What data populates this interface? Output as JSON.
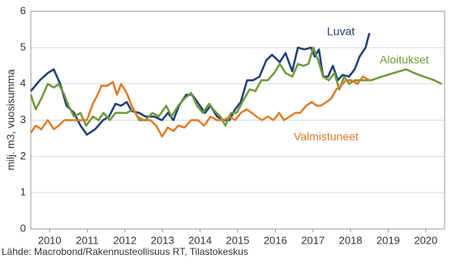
{
  "chart_data": {
    "type": "line",
    "y_label": "milj. m3, vuosisumma",
    "source": "Lähde: Macrobond/Rakennusteollisuus RT, Tilastokeskus",
    "xlim": [
      2010,
      2021
    ],
    "xticks": [
      {
        "value": 2010.5,
        "label": "2010"
      },
      {
        "value": 2011.5,
        "label": "2011"
      },
      {
        "value": 2012.5,
        "label": "2012"
      },
      {
        "value": 2013.5,
        "label": "2013"
      },
      {
        "value": 2014.5,
        "label": "2014"
      },
      {
        "value": 2015.5,
        "label": "2015"
      },
      {
        "value": 2016.5,
        "label": "2016"
      },
      {
        "value": 2017.5,
        "label": "2017"
      },
      {
        "value": 2018.5,
        "label": "2018"
      },
      {
        "value": 2019.5,
        "label": "2019"
      },
      {
        "value": 2020.5,
        "label": "2020"
      }
    ],
    "ylim": [
      0,
      6
    ],
    "yticks": [
      0,
      1,
      2,
      3,
      4,
      5,
      6
    ],
    "grid": true,
    "series": [
      {
        "name": "Luvat",
        "color": "#1f3f7a",
        "x": [
          2010.0,
          2010.24,
          2010.45,
          2010.61,
          2010.78,
          2010.95,
          2011.15,
          2011.32,
          2011.49,
          2011.71,
          2011.92,
          2012.08,
          2012.25,
          2012.4,
          2012.55,
          2012.68,
          2012.88,
          2013.05,
          2013.27,
          2013.49,
          2013.64,
          2013.79,
          2013.94,
          2014.13,
          2014.29,
          2014.46,
          2014.63,
          2014.78,
          2014.95,
          2015.13,
          2015.28,
          2015.43,
          2015.58,
          2015.75,
          2015.91,
          2016.08,
          2016.26,
          2016.41,
          2016.52,
          2016.62,
          2016.77,
          2016.95,
          2017.1,
          2017.27,
          2017.45,
          2017.55,
          2017.66,
          2017.77,
          2017.9,
          2018.03,
          2018.16,
          2018.29,
          2018.46,
          2018.61,
          2018.74,
          2018.9,
          2019.0
        ],
        "values": [
          3.8,
          4.1,
          4.3,
          4.4,
          4.0,
          3.4,
          3.2,
          2.85,
          2.6,
          2.75,
          3.0,
          3.1,
          3.45,
          3.4,
          3.5,
          3.25,
          3.2,
          3.1,
          3.1,
          3.0,
          3.2,
          3.0,
          3.4,
          3.7,
          3.7,
          3.45,
          3.2,
          3.4,
          3.1,
          3.0,
          3.0,
          3.3,
          3.5,
          4.1,
          4.1,
          4.2,
          4.65,
          4.8,
          4.7,
          4.6,
          4.85,
          4.35,
          5.0,
          4.95,
          5.0,
          4.75,
          4.95,
          4.2,
          4.2,
          4.5,
          4.1,
          4.25,
          4.2,
          4.4,
          4.75,
          5.0,
          5.4
        ]
      },
      {
        "name": "Aloitukset",
        "color": "#6e9a3a",
        "x": [
          2010.0,
          2010.13,
          2010.28,
          2010.45,
          2010.61,
          2010.74,
          2010.89,
          2011.0,
          2011.15,
          2011.32,
          2011.47,
          2011.65,
          2011.8,
          2011.93,
          2012.1,
          2012.25,
          2012.4,
          2012.55,
          2012.73,
          2012.88,
          2013.05,
          2013.23,
          2013.4,
          2013.6,
          2013.74,
          2013.92,
          2014.09,
          2014.26,
          2014.42,
          2014.57,
          2014.74,
          2014.89,
          2015.04,
          2015.17,
          2015.32,
          2015.47,
          2015.65,
          2015.82,
          2015.97,
          2016.13,
          2016.3,
          2016.47,
          2016.62,
          2016.77,
          2016.95,
          2017.1,
          2017.25,
          2017.38,
          2017.51,
          2017.64,
          2017.77,
          2017.92,
          2018.07,
          2018.2,
          2018.33,
          2018.46,
          2018.61,
          2018.74,
          2018.9,
          2019.05,
          2019.33,
          2019.65,
          2019.98,
          2020.19,
          2020.45,
          2020.73,
          2020.92
        ],
        "values": [
          3.7,
          3.3,
          3.6,
          4.0,
          3.9,
          4.0,
          3.7,
          3.4,
          3.1,
          3.2,
          2.85,
          3.1,
          3.0,
          3.2,
          3.0,
          3.2,
          3.2,
          3.2,
          3.3,
          3.0,
          3.0,
          3.2,
          3.1,
          3.4,
          3.1,
          3.4,
          3.6,
          3.75,
          3.4,
          3.2,
          3.45,
          3.25,
          3.1,
          2.85,
          3.2,
          3.2,
          3.55,
          3.85,
          3.8,
          4.1,
          4.1,
          4.3,
          4.55,
          4.3,
          4.2,
          4.55,
          4.5,
          4.55,
          5.0,
          4.65,
          4.2,
          4.1,
          4.3,
          3.85,
          4.2,
          4.0,
          4.1,
          4.1,
          4.1,
          4.1,
          4.2,
          4.3,
          4.4,
          4.3,
          4.2,
          4.1,
          4.0
        ]
      },
      {
        "name": "Valmistuneet",
        "color": "#e07b2a",
        "x": [
          2010.0,
          2010.13,
          2010.28,
          2010.45,
          2010.61,
          2010.74,
          2010.89,
          2011.06,
          2011.21,
          2011.36,
          2011.49,
          2011.65,
          2011.75,
          2011.88,
          2012.03,
          2012.18,
          2012.29,
          2012.4,
          2012.55,
          2012.68,
          2012.83,
          2013.0,
          2013.18,
          2013.33,
          2013.49,
          2013.64,
          2013.79,
          2013.92,
          2014.09,
          2014.26,
          2014.44,
          2014.61,
          2014.78,
          2014.95,
          2015.13,
          2015.28,
          2015.43,
          2015.58,
          2015.74,
          2015.87,
          2016.0,
          2016.15,
          2016.3,
          2016.45,
          2016.6,
          2016.73,
          2016.88,
          2017.03,
          2017.16,
          2017.32,
          2017.47,
          2017.6,
          2017.71,
          2017.86,
          2017.99,
          2018.12,
          2018.25,
          2018.38,
          2018.53,
          2018.68,
          2018.83,
          2019.0
        ],
        "values": [
          2.65,
          2.85,
          2.75,
          3.0,
          2.75,
          2.85,
          3.0,
          3.0,
          3.0,
          3.0,
          3.0,
          3.45,
          3.65,
          3.95,
          3.95,
          4.05,
          3.7,
          4.0,
          3.75,
          3.4,
          3.1,
          3.0,
          3.0,
          2.85,
          2.55,
          2.8,
          2.7,
          2.85,
          2.8,
          3.0,
          3.0,
          2.85,
          3.1,
          3.0,
          3.0,
          3.1,
          3.0,
          3.2,
          3.3,
          3.2,
          3.1,
          3.0,
          3.1,
          3.0,
          3.2,
          3.0,
          3.1,
          3.2,
          3.2,
          3.4,
          3.5,
          3.4,
          3.4,
          3.5,
          3.6,
          3.85,
          3.95,
          4.1,
          4.1,
          4.0,
          4.2,
          4.1
        ]
      }
    ]
  }
}
